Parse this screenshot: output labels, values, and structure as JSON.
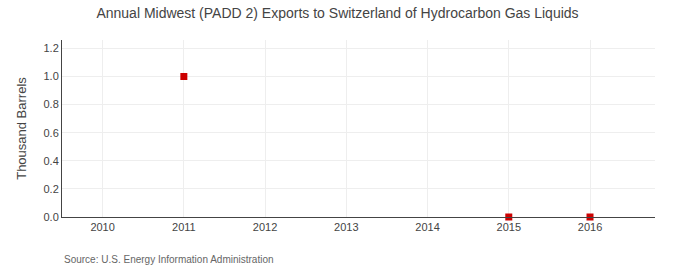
{
  "chart_data": {
    "type": "scatter",
    "title": "Annual Midwest (PADD 2) Exports to Switzerland of Hydrocarbon Gas Liquids",
    "ylabel": "Thousand Barrels",
    "annotations": [
      "Source: U.S. Energy Information Administration"
    ],
    "x": [
      2011,
      2015,
      2016
    ],
    "values": [
      1.0,
      0.0,
      0.0
    ],
    "color": "#cc0000",
    "marker": "square",
    "xlim": [
      2009.5,
      2016.8
    ],
    "ylim": [
      0.0,
      1.26
    ],
    "xticks": [
      2010,
      2011,
      2012,
      2013,
      2014,
      2015,
      2016
    ],
    "yticks": [
      {
        "value": 0.0,
        "label": "0.0"
      },
      0.2,
      0.4,
      0.6,
      0.8,
      {
        "value": 1.0,
        "label": "1.0"
      },
      1.2
    ],
    "grid": true
  }
}
